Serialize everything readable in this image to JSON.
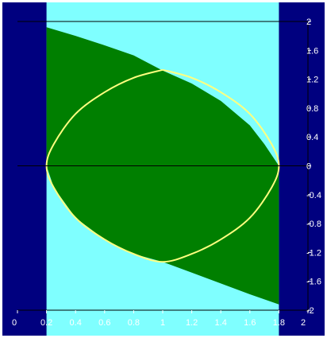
{
  "colors": {
    "frame": "#ffffff",
    "outer": "#00007f",
    "band": "#7fffff",
    "fill": "#007f00",
    "curve": "#ffff7f",
    "axis_line": "#000000",
    "tick_text": "#ffffff"
  },
  "chart_data": {
    "type": "area",
    "title": "",
    "xlabel": "",
    "ylabel": "",
    "xlim": [
      0,
      2
    ],
    "ylim": [
      -2,
      2
    ],
    "grid": false,
    "legend": "none",
    "x_ticks": [
      "0",
      "0.2",
      "0.4",
      "0.6",
      "0.8",
      "1",
      "1.2",
      "1.4",
      "1.6",
      "1.8",
      "2"
    ],
    "y_ticks": [
      "2",
      "1.6",
      "1.2",
      "0.8",
      "0.4",
      "0",
      "-0.4",
      "-0.8",
      "-1.2",
      "-1.6",
      "-2"
    ],
    "band_x_range": [
      0.2,
      1.8
    ],
    "filled_region": {
      "x_start": 0.2,
      "x_end": 1.8,
      "upper_boundary": [
        {
          "x": 0.2,
          "y": 1.92
        },
        {
          "x": 0.4,
          "y": 1.8
        },
        {
          "x": 0.6,
          "y": 1.67
        },
        {
          "x": 0.8,
          "y": 1.53
        },
        {
          "x": 1.0,
          "y": 1.32
        },
        {
          "x": 1.2,
          "y": 1.14
        },
        {
          "x": 1.4,
          "y": 0.9
        },
        {
          "x": 1.6,
          "y": 0.56
        },
        {
          "x": 1.7,
          "y": 0.3
        },
        {
          "x": 1.8,
          "y": 0.0
        }
      ],
      "lower_boundary": [
        {
          "x": 0.2,
          "y": 0.0
        },
        {
          "x": 0.25,
          "y": -0.3
        },
        {
          "x": 0.4,
          "y": -0.72
        },
        {
          "x": 0.6,
          "y": -1.02
        },
        {
          "x": 0.8,
          "y": -1.22
        },
        {
          "x": 1.0,
          "y": -1.33
        },
        {
          "x": 1.2,
          "y": -1.48
        },
        {
          "x": 1.4,
          "y": -1.63
        },
        {
          "x": 1.6,
          "y": -1.78
        },
        {
          "x": 1.8,
          "y": -1.92
        }
      ]
    },
    "closed_curve": [
      {
        "x": 1.0,
        "y": 1.33
      },
      {
        "x": 0.8,
        "y": 1.22
      },
      {
        "x": 0.6,
        "y": 1.02
      },
      {
        "x": 0.4,
        "y": 0.72
      },
      {
        "x": 0.25,
        "y": 0.3
      },
      {
        "x": 0.2,
        "y": 0.0
      },
      {
        "x": 0.25,
        "y": -0.3
      },
      {
        "x": 0.4,
        "y": -0.72
      },
      {
        "x": 0.6,
        "y": -1.02
      },
      {
        "x": 0.8,
        "y": -1.22
      },
      {
        "x": 1.0,
        "y": -1.33
      },
      {
        "x": 1.2,
        "y": -1.22
      },
      {
        "x": 1.4,
        "y": -1.02
      },
      {
        "x": 1.6,
        "y": -0.72
      },
      {
        "x": 1.75,
        "y": -0.3
      },
      {
        "x": 1.8,
        "y": 0.0
      },
      {
        "x": 1.75,
        "y": 0.3
      },
      {
        "x": 1.6,
        "y": 0.72
      },
      {
        "x": 1.4,
        "y": 1.02
      },
      {
        "x": 1.2,
        "y": 1.22
      },
      {
        "x": 1.0,
        "y": 1.33
      }
    ],
    "reference_lines": [
      {
        "orientation": "horizontal",
        "y": 2
      },
      {
        "orientation": "horizontal",
        "y": 0
      }
    ]
  }
}
